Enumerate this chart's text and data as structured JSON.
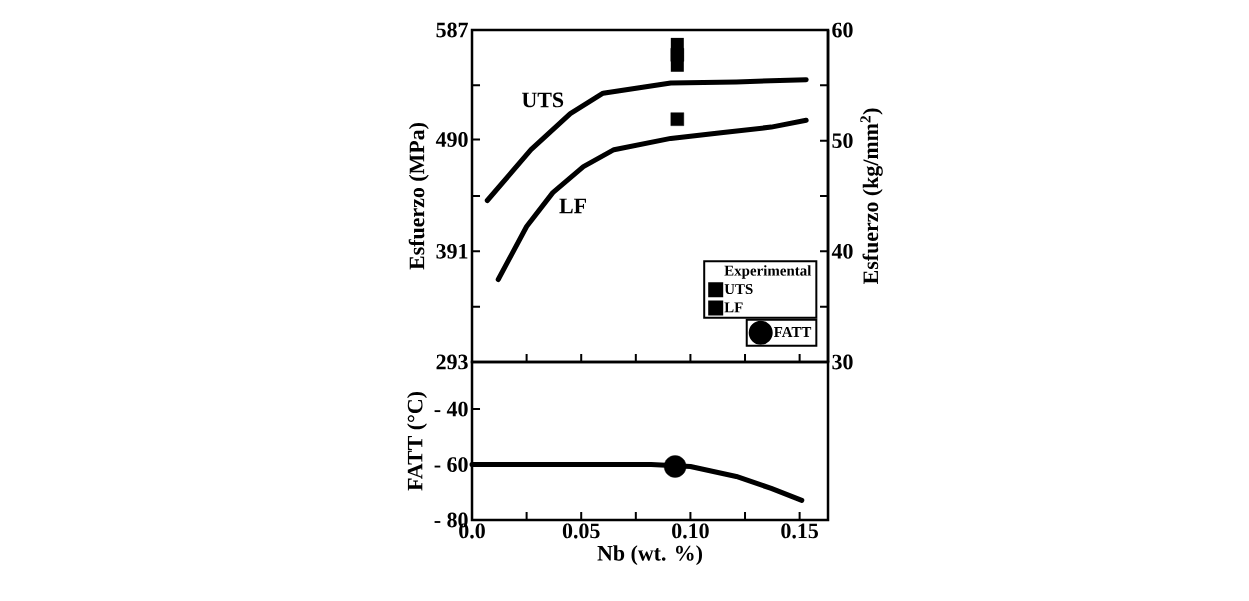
{
  "chart_data": [
    {
      "type": "line",
      "ylabel": "Esfuerzo (MPa)",
      "y2label": "Esfuerzo (kg/mm$^{2}$)",
      "legend_title": "Experimental",
      "legend": "bottom right",
      "tick_labels": "y",
      "xlim": [
        0,
        0.163
      ],
      "xticks": [
        {
          "value": 0,
          "label": null
        },
        {
          "value": 0.025,
          "label": null
        },
        {
          "value": 0.05,
          "label": null
        },
        {
          "value": 0.075,
          "label": null
        },
        {
          "value": 0.1,
          "label": null
        },
        {
          "value": 0.125,
          "label": null
        },
        {
          "value": 0.15,
          "label": null
        }
      ],
      "ylim": [
        293,
        587
      ],
      "yticks": [
        293,
        {
          "value": 342,
          "label": null
        },
        391,
        {
          "value": 440,
          "label": null
        },
        490,
        {
          "value": 538,
          "label": null
        },
        587
      ],
      "y2lim": [
        30,
        60
      ],
      "y2ticks": [
        30,
        {
          "value": 35,
          "label": null
        },
        40,
        {
          "value": 45,
          "label": null
        },
        50,
        {
          "value": 55,
          "label": null
        },
        60
      ],
      "annotations": [
        "UTS",
        "LF"
      ],
      "series": [
        {
          "color": "#000000",
          "x": [
            0.007,
            0.027,
            0.045,
            0.06,
            0.091,
            0.121,
            0.153
          ],
          "values": [
            436,
            481,
            513,
            531,
            540,
            541,
            543
          ]
        },
        {
          "color": "#000000",
          "x": [
            0.012,
            0.025,
            0.037,
            0.051,
            0.065,
            0.091,
            0.114,
            0.137,
            0.153
          ],
          "values": [
            366,
            413,
            443,
            466,
            481,
            491,
            496,
            501,
            507
          ]
        },
        {
          "name": "UTS",
          "type": "scatter",
          "marker": "square",
          "color": "#000000",
          "x": [
            0.094
          ],
          "values": [
            565
          ],
          "errors": [
            15
          ]
        },
        {
          "name": "LF",
          "type": "scatter",
          "marker": "square",
          "color": "#000000",
          "x": [
            0.094
          ],
          "values": [
            508
          ]
        }
      ]
    },
    {
      "type": "line",
      "xlabel": "Nb  (wt. %)",
      "ylabel": "FATT (°C)",
      "legend": "top right",
      "xlim": [
        0,
        0.163
      ],
      "xticks": [
        {
          "value": 0,
          "label": "0.0"
        },
        {
          "value": 0.025,
          "label": null
        },
        {
          "value": 0.05,
          "label": "0.05"
        },
        {
          "value": 0.075,
          "label": null
        },
        {
          "value": 0.1,
          "label": "0.10"
        },
        {
          "value": 0.125,
          "label": null
        },
        {
          "value": 0.15,
          "label": "0.15"
        }
      ],
      "ylim": [
        -80,
        -23
      ],
      "yticks": [
        {
          "value": -80,
          "label": "- 80"
        },
        {
          "value": -60,
          "label": "- 60"
        },
        {
          "value": -40,
          "label": "- 40"
        }
      ],
      "series": [
        {
          "color": "#000000",
          "x": [
            0.0,
            0.082,
            0.1,
            0.121,
            0.137,
            0.151
          ],
          "values": [
            -60,
            -60,
            -60.7,
            -64.3,
            -68.6,
            -72.9
          ]
        },
        {
          "name": "FATT",
          "type": "scatter",
          "marker": "circle",
          "color": "#000000",
          "x": [
            0.093
          ],
          "values": [
            -60.7
          ]
        }
      ]
    }
  ]
}
